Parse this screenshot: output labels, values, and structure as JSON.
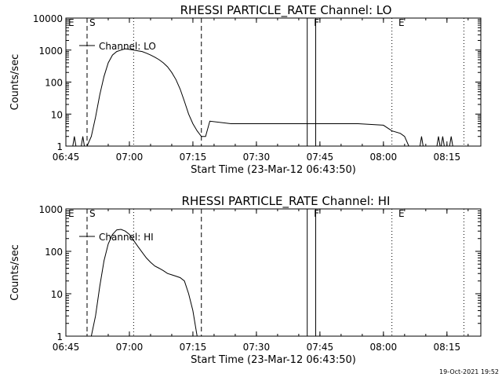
{
  "footer": {
    "timestamp": "19-Oct-2021 19:52"
  },
  "chart_data": [
    {
      "type": "line",
      "title": "RHESSI PARTICLE_RATE Channel: LO",
      "xlabel": "Start Time (23-Mar-12 06:43:50)",
      "ylabel": "Counts/sec",
      "y_scale": "log",
      "ylim": [
        1,
        10000
      ],
      "xlim": [
        "06:45",
        "08:23"
      ],
      "x_ticks": [
        "06:45",
        "07:00",
        "07:15",
        "07:30",
        "07:45",
        "08:00",
        "08:15"
      ],
      "y_ticks": [
        "1",
        "10",
        "100",
        "1000",
        "10000"
      ],
      "legend": {
        "label": "Channel: LO",
        "placement": "top-left"
      },
      "markers": [
        {
          "label": "E",
          "time": "06:45"
        },
        {
          "label": "S",
          "time": "06:50"
        },
        {
          "label": "F",
          "time": "07:43"
        },
        {
          "label": "E",
          "time": "08:03"
        }
      ],
      "dashed_lines": [
        "06:50",
        "07:17"
      ],
      "dotted_lines": [
        "07:01",
        "08:02",
        "08:19"
      ],
      "solid_lines": [
        "07:42",
        "07:44"
      ],
      "series": [
        {
          "x": [
            "06:50",
            "06:51",
            "06:52",
            "06:53",
            "06:54",
            "06:55",
            "06:56",
            "06:57",
            "06:58",
            "06:59",
            "07:00",
            "07:01",
            "07:02",
            "07:03",
            "07:04",
            "07:05",
            "07:06",
            "07:07",
            "07:08",
            "07:09",
            "07:10",
            "07:11",
            "07:12",
            "07:13",
            "07:14",
            "07:15",
            "07:16",
            "07:17",
            "07:18",
            "07:19",
            "07:24",
            "07:30",
            "07:36",
            "07:42",
            "07:48",
            "07:54",
            "08:00",
            "08:02",
            "08:04",
            "08:05",
            "08:06"
          ],
          "y": [
            1,
            2,
            8,
            40,
            150,
            400,
            700,
            900,
            1000,
            1100,
            1050,
            1000,
            950,
            900,
            800,
            700,
            600,
            500,
            400,
            300,
            200,
            120,
            60,
            25,
            10,
            5,
            3,
            2,
            2,
            6,
            5,
            5,
            5,
            5,
            5,
            5,
            4.5,
            3,
            2.5,
            2,
            1
          ]
        }
      ],
      "spikes": [
        "06:47",
        "06:49",
        "08:09",
        "08:13",
        "08:14",
        "08:16"
      ]
    },
    {
      "type": "line",
      "title": "RHESSI PARTICLE_RATE Channel: HI",
      "xlabel": "Start Time (23-Mar-12 06:43:50)",
      "ylabel": "Counts/sec",
      "y_scale": "log",
      "ylim": [
        1,
        1000
      ],
      "xlim": [
        "06:45",
        "08:23"
      ],
      "x_ticks": [
        "06:45",
        "07:00",
        "07:15",
        "07:30",
        "07:45",
        "08:00",
        "08:15"
      ],
      "y_ticks": [
        "1",
        "10",
        "100",
        "1000"
      ],
      "legend": {
        "label": "Channel: HI",
        "placement": "top-left"
      },
      "markers": [
        {
          "label": "E",
          "time": "06:45"
        },
        {
          "label": "S",
          "time": "06:50"
        },
        {
          "label": "F",
          "time": "07:43"
        },
        {
          "label": "E",
          "time": "08:03"
        }
      ],
      "dashed_lines": [
        "06:50",
        "07:17"
      ],
      "dotted_lines": [
        "07:01",
        "08:02",
        "08:19"
      ],
      "solid_lines": [
        "07:42",
        "07:44"
      ],
      "series": [
        {
          "x": [
            "06:51",
            "06:52",
            "06:53",
            "06:54",
            "06:55",
            "06:56",
            "06:57",
            "06:58",
            "06:59",
            "07:00",
            "07:01",
            "07:02",
            "07:03",
            "07:04",
            "07:05",
            "07:06",
            "07:07",
            "07:08",
            "07:09",
            "07:10",
            "07:11",
            "07:12",
            "07:13",
            "07:14",
            "07:15",
            "07:16"
          ],
          "y": [
            1,
            3,
            15,
            60,
            150,
            250,
            320,
            330,
            300,
            250,
            180,
            130,
            95,
            70,
            55,
            45,
            40,
            35,
            30,
            28,
            26,
            24,
            20,
            10,
            4,
            1
          ]
        }
      ],
      "spikes": []
    }
  ]
}
